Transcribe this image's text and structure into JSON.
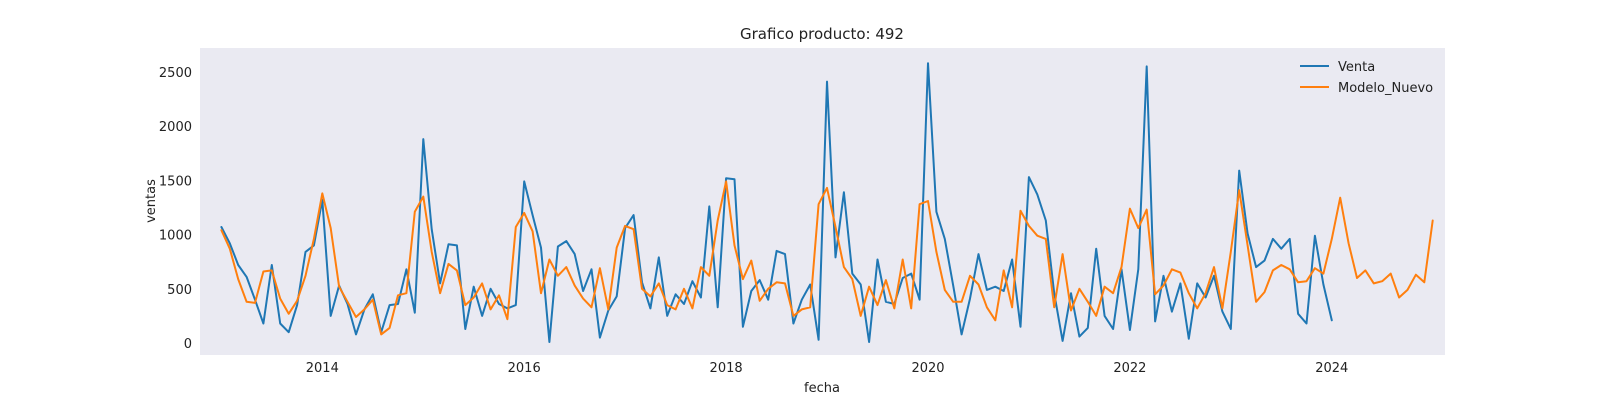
{
  "chart_data": {
    "type": "line",
    "title": "Grafico producto: 492",
    "xlabel": "fecha",
    "ylabel": "ventas",
    "x_axis": {
      "kind": "date",
      "range": [
        "2012-10-15",
        "2025-02-15"
      ],
      "ticks": [
        "2014",
        "2016",
        "2018",
        "2020",
        "2022",
        "2024"
      ]
    },
    "y_axis": {
      "range": [
        -110,
        2720
      ],
      "ticks": [
        0,
        500,
        1000,
        1500,
        2000,
        2500
      ]
    },
    "grid": false,
    "background": "#eaeaf2",
    "legend": {
      "placement": "top-right"
    },
    "series": [
      {
        "name": "Venta",
        "color": "#1f77b4",
        "start": "2013-01",
        "values": [
          1070,
          920,
          720,
          610,
          400,
          180,
          720,
          180,
          100,
          350,
          840,
          900,
          1320,
          250,
          530,
          360,
          80,
          310,
          450,
          100,
          350,
          360,
          680,
          280,
          1880,
          1050,
          550,
          910,
          900,
          130,
          520,
          250,
          500,
          360,
          320,
          350,
          1490,
          1180,
          880,
          10,
          890,
          940,
          820,
          480,
          680,
          50,
          300,
          430,
          1060,
          1180,
          560,
          320,
          790,
          250,
          450,
          360,
          570,
          420,
          1260,
          330,
          1520,
          1510,
          150,
          480,
          580,
          400,
          850,
          820,
          180,
          400,
          540,
          30,
          2410,
          790,
          1390,
          640,
          540,
          10,
          770,
          380,
          360,
          600,
          640,
          400,
          2580,
          1210,
          960,
          530,
          80,
          410,
          820,
          490,
          520,
          480,
          770,
          150,
          1530,
          1370,
          1130,
          460,
          20,
          460,
          60,
          140,
          870,
          250,
          130,
          680,
          120,
          680,
          2550,
          200,
          620,
          290,
          550,
          40,
          550,
          420,
          620,
          290,
          130,
          1590,
          1010,
          700,
          760,
          960,
          870,
          960,
          270,
          180,
          990,
          540,
          210
        ]
      },
      {
        "name": "Modelo_Nuevo",
        "color": "#ff7f0e",
        "start": "2013-01",
        "values": [
          1040,
          870,
          590,
          380,
          370,
          660,
          670,
          410,
          270,
          390,
          620,
          960,
          1380,
          1060,
          520,
          380,
          240,
          310,
          400,
          80,
          140,
          440,
          460,
          1210,
          1350,
          840,
          460,
          730,
          670,
          350,
          420,
          550,
          310,
          440,
          220,
          1070,
          1200,
          1030,
          460,
          770,
          620,
          700,
          530,
          410,
          330,
          690,
          310,
          880,
          1080,
          1050,
          500,
          430,
          550,
          350,
          310,
          500,
          320,
          700,
          620,
          1130,
          1490,
          900,
          590,
          760,
          390,
          500,
          560,
          550,
          250,
          310,
          330,
          1280,
          1430,
          1070,
          700,
          590,
          250,
          520,
          350,
          580,
          320,
          770,
          320,
          1280,
          1310,
          840,
          490,
          380,
          380,
          620,
          540,
          330,
          210,
          670,
          330,
          1220,
          1080,
          990,
          960,
          330,
          820,
          300,
          500,
          380,
          250,
          520,
          460,
          700,
          1240,
          1060,
          1230,
          450,
          530,
          680,
          650,
          460,
          320,
          460,
          700,
          320,
          840,
          1410,
          900,
          380,
          470,
          670,
          720,
          680,
          560,
          570,
          690,
          640,
          960,
          1340,
          920,
          600,
          670,
          550,
          570,
          640,
          420,
          490,
          630,
          560,
          1130
        ]
      }
    ]
  }
}
